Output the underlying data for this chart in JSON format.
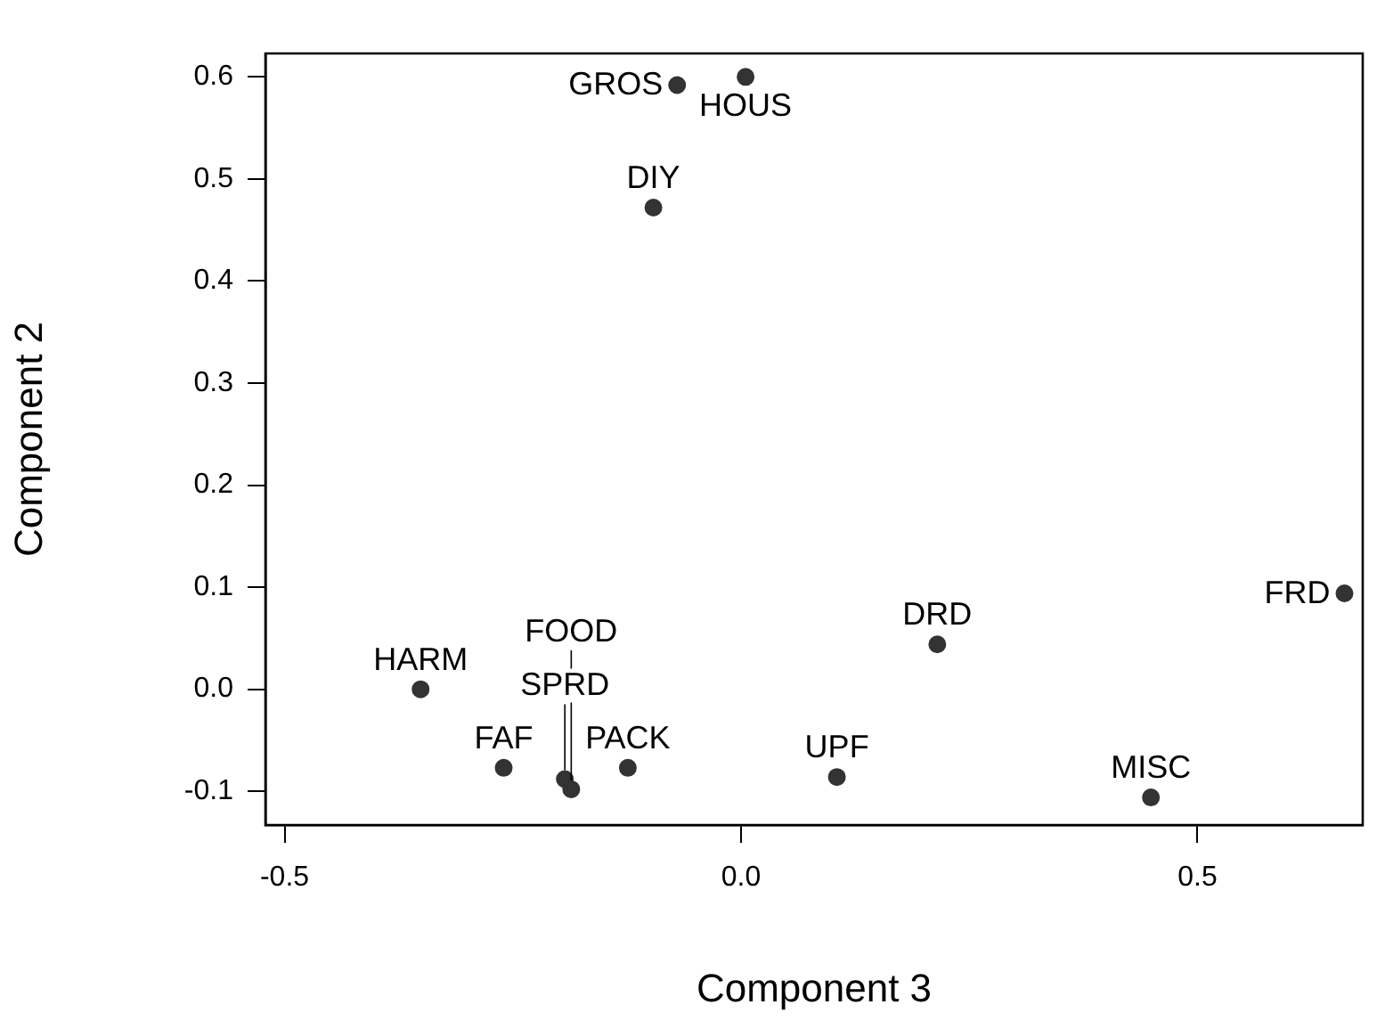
{
  "chart_data": {
    "type": "scatter",
    "xlabel": "Component 3",
    "ylabel": "Component 2",
    "x": [
      0.005,
      -0.07,
      -0.096,
      0.661,
      0.215,
      -0.351,
      -0.26,
      -0.193,
      -0.186,
      -0.124,
      0.105,
      0.449
    ],
    "values": [
      0.6,
      0.592,
      0.472,
      0.094,
      0.044,
      0.0,
      -0.077,
      -0.088,
      -0.098,
      -0.077,
      -0.086,
      -0.106
    ],
    "color": "#333333",
    "marker": "circle",
    "xlim": [
      -0.521,
      0.681
    ],
    "xticks": [
      -0.5,
      {
        "value": 0,
        "label": "0.0"
      },
      0.5
    ],
    "ylim": [
      -0.133,
      0.623
    ],
    "yticks": [
      -0.1,
      {
        "value": 0,
        "label": "0.0"
      },
      0.1,
      0.2,
      0.3,
      0.4,
      0.5,
      0.6
    ],
    "grid": false,
    "legend": false,
    "annotations": [
      {
        "text": "HOUS",
        "x": 0.005,
        "y": 0.6
      },
      {
        "text": "GROS",
        "x": -0.07,
        "y": 0.592
      },
      {
        "text": "DIY",
        "x": -0.096,
        "y": 0.472
      },
      {
        "text": "FRD",
        "x": 0.661,
        "y": 0.094
      },
      {
        "text": "DRD",
        "x": 0.215,
        "y": 0.044
      },
      {
        "text": "HARM",
        "x": -0.351,
        "y": 0.0
      },
      {
        "text": "FAF",
        "x": -0.26,
        "y": -0.077
      },
      {
        "text": "SPRD",
        "x": -0.193,
        "y": -0.088
      },
      {
        "text": "FOOD",
        "x": -0.186,
        "y": -0.098
      },
      {
        "text": "PACK",
        "x": -0.124,
        "y": -0.077
      },
      {
        "text": "UPF",
        "x": 0.105,
        "y": -0.086
      },
      {
        "text": "MISC",
        "x": 0.449,
        "y": -0.106
      }
    ]
  }
}
